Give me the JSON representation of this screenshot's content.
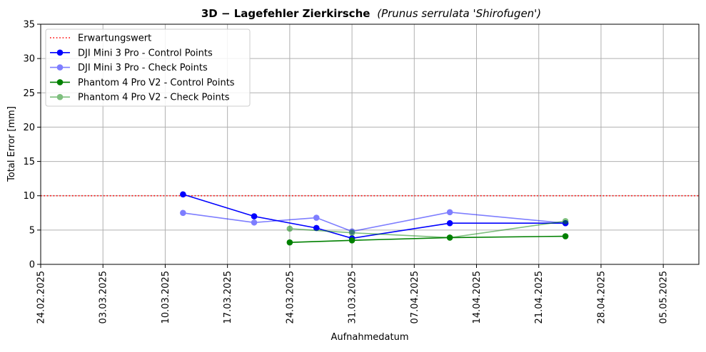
{
  "chart_data": {
    "type": "line",
    "title_bold": "3D − Lagefehler Zierkirsche",
    "title_italic": "(Prunus serrulata 'Shirofugen')",
    "xlabel": "Aufnahmedatum",
    "ylabel": "Total Error [mm]",
    "xlim": [
      "2025-02-24",
      "2025-05-09"
    ],
    "ylim": [
      0,
      35
    ],
    "yticks": [
      0,
      5,
      10,
      15,
      20,
      25,
      30,
      35
    ],
    "xticks": [
      "2025-02-24",
      "2025-03-03",
      "2025-03-10",
      "2025-03-17",
      "2025-03-24",
      "2025-03-31",
      "2025-04-07",
      "2025-04-14",
      "2025-04-21",
      "2025-04-28",
      "2025-05-05"
    ],
    "xtick_labels": [
      "24.02.2025",
      "03.03.2025",
      "10.03.2025",
      "17.03.2025",
      "24.03.2025",
      "31.03.2025",
      "07.04.2025",
      "14.04.2025",
      "21.04.2025",
      "28.04.2025",
      "05.05.2025"
    ],
    "grid": true,
    "legend_position": "top-left",
    "reference_line": {
      "name": "Erwartungswert",
      "y": 10,
      "color": "#ff0000",
      "style": "dotted"
    },
    "series": [
      {
        "name": "DJI Mini 3 Pro - Control Points",
        "color": "#0000ff",
        "opacity": 1,
        "x": [
          "2025-03-12",
          "2025-03-20",
          "2025-03-27",
          "2025-03-31",
          "2025-04-11",
          "2025-04-24"
        ],
        "y": [
          10.2,
          7.0,
          5.3,
          3.8,
          6.0,
          6.0
        ]
      },
      {
        "name": "DJI Mini 3 Pro - Check Points",
        "color": "#0000ff",
        "opacity": 0.5,
        "x": [
          "2025-03-12",
          "2025-03-20",
          "2025-03-27",
          "2025-03-31",
          "2025-04-11",
          "2025-04-24"
        ],
        "y": [
          7.5,
          6.1,
          6.8,
          4.8,
          7.6,
          6.0
        ]
      },
      {
        "name": "Phantom 4 Pro V2 - Control Points",
        "color": "#008000",
        "opacity": 1,
        "x": [
          "2025-03-24",
          "2025-03-31",
          "2025-04-11",
          "2025-04-24"
        ],
        "y": [
          3.2,
          3.5,
          3.9,
          4.1
        ]
      },
      {
        "name": "Phantom 4 Pro V2 - Check Points",
        "color": "#008000",
        "opacity": 0.5,
        "x": [
          "2025-03-24",
          "2025-03-31",
          "2025-04-11",
          "2025-04-24"
        ],
        "y": [
          5.2,
          4.6,
          3.9,
          6.3
        ]
      }
    ]
  }
}
